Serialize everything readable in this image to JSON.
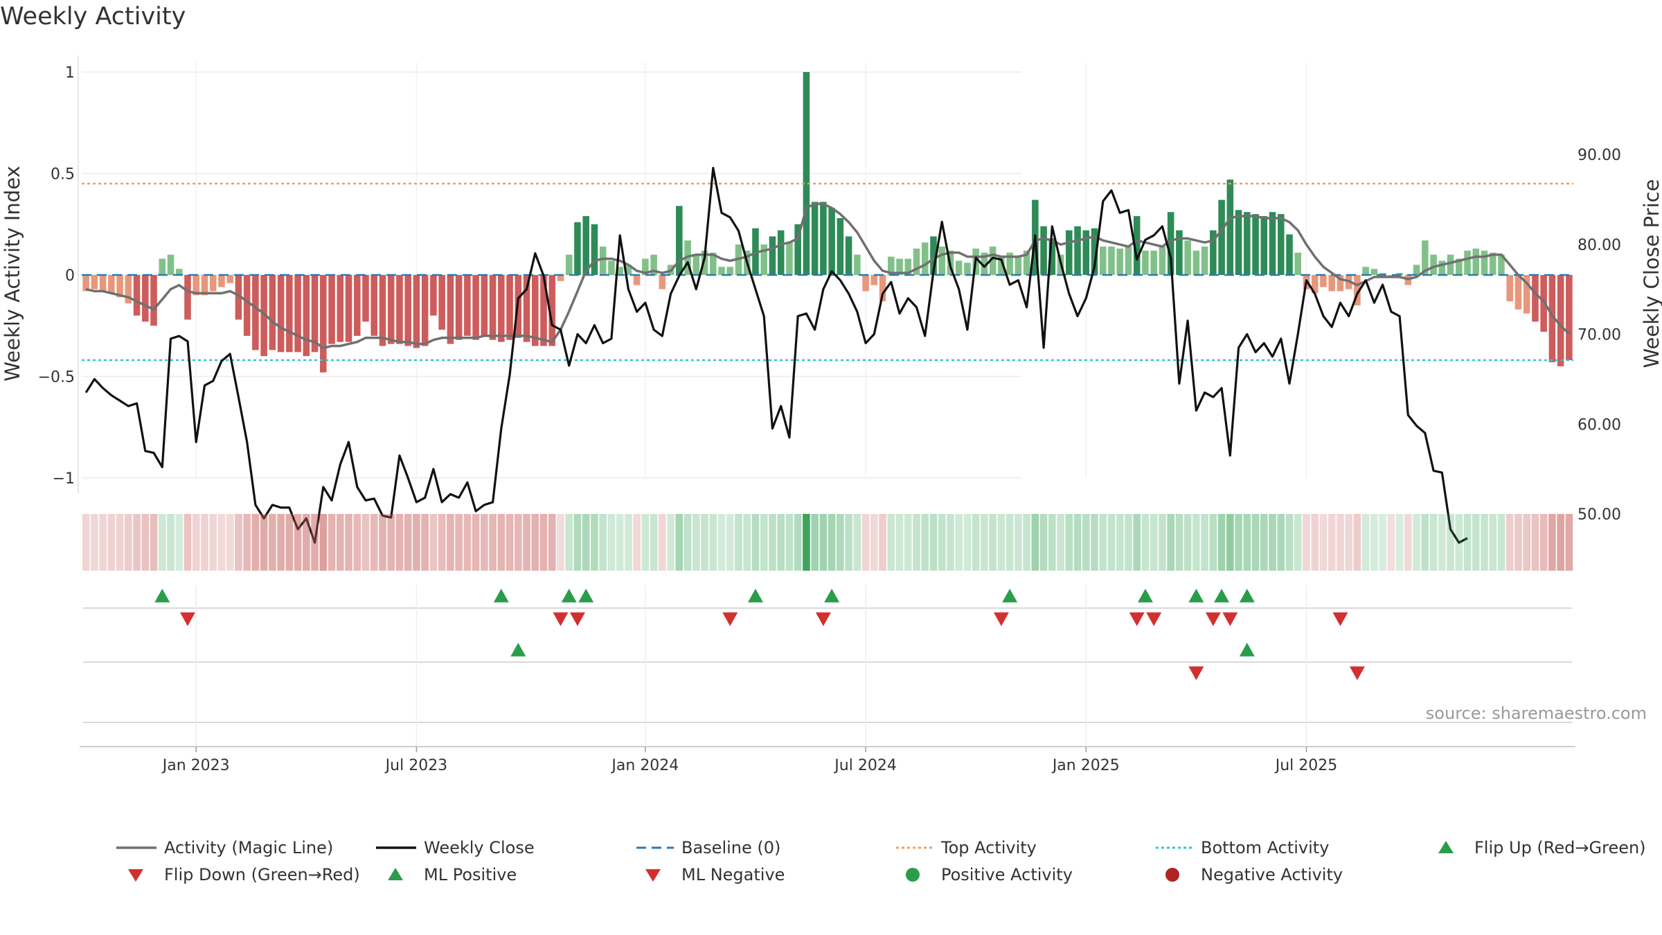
{
  "chart_data": {
    "type": "bar",
    "title": "Weekly Activity",
    "ylabel_left": "Weekly Activity Index",
    "ylabel_right": "Weekly Close Price",
    "source": "source: sharemaestro.com",
    "x_tick_labels": [
      "Jan 2023",
      "Jul 2023",
      "Jan 2024",
      "Jul 2024",
      "Jan 2025",
      "Jul 2025"
    ],
    "x_tick_weeks": [
      13,
      39,
      66,
      92,
      118,
      144
    ],
    "left_axis": {
      "range": [
        -1.1,
        1.04
      ],
      "ticks": [
        1,
        0.5,
        0,
        -0.5,
        -1
      ],
      "tick_labels": [
        "1",
        "0.5",
        "0",
        "−0.5",
        "−1"
      ]
    },
    "right_axis": {
      "range": [
        45.1,
        92.4
      ],
      "ticks": [
        90,
        80,
        70,
        60,
        50
      ],
      "tick_labels": [
        "90.00",
        "80.00",
        "70.00",
        "60.00",
        "50.00"
      ]
    },
    "top_activity": 0.45,
    "bottom_activity": -0.42,
    "activity": [
      -0.08,
      -0.07,
      -0.08,
      -0.09,
      -0.11,
      -0.14,
      -0.2,
      -0.23,
      -0.25,
      0.08,
      0.1,
      0.03,
      -0.22,
      -0.1,
      -0.1,
      -0.08,
      -0.06,
      -0.04,
      -0.22,
      -0.3,
      -0.37,
      -0.4,
      -0.37,
      -0.38,
      -0.38,
      -0.38,
      -0.4,
      -0.38,
      -0.48,
      -0.34,
      -0.33,
      -0.33,
      -0.3,
      -0.23,
      -0.3,
      -0.35,
      -0.34,
      -0.34,
      -0.35,
      -0.36,
      -0.35,
      -0.2,
      -0.27,
      -0.34,
      -0.32,
      -0.3,
      -0.32,
      -0.3,
      -0.32,
      -0.33,
      -0.32,
      -0.31,
      -0.33,
      -0.35,
      -0.35,
      -0.35,
      -0.03,
      0.1,
      0.26,
      0.29,
      0.25,
      0.14,
      0.07,
      0.04,
      0.05,
      -0.05,
      0.08,
      0.1,
      -0.07,
      0.05,
      0.34,
      0.17,
      0.1,
      0.12,
      0.11,
      0.04,
      0.04,
      0.15,
      0.12,
      0.23,
      0.15,
      0.19,
      0.22,
      0.16,
      0.25,
      1.0,
      0.36,
      0.36,
      0.33,
      0.28,
      0.19,
      0.1,
      -0.08,
      -0.05,
      -0.13,
      0.09,
      0.08,
      0.08,
      0.13,
      0.16,
      0.19,
      0.14,
      0.12,
      0.07,
      0.06,
      0.13,
      0.11,
      0.14,
      0.09,
      0.11,
      0.09,
      0.12,
      0.37,
      0.24,
      0.18,
      0.1,
      0.22,
      0.24,
      0.22,
      0.23,
      0.14,
      0.14,
      0.13,
      0.14,
      0.29,
      0.12,
      0.12,
      0.14,
      0.31,
      0.22,
      0.17,
      0.12,
      0.14,
      0.22,
      0.37,
      0.47,
      0.32,
      0.31,
      0.3,
      0.29,
      0.31,
      0.3,
      0.2,
      0.11,
      -0.07,
      -0.09,
      -0.06,
      -0.08,
      -0.08,
      -0.07,
      -0.15,
      0.04,
      0.03,
      0.01,
      -0.01,
      0.01,
      -0.05,
      0.05,
      0.17,
      0.1,
      0.07,
      0.1,
      0.08,
      0.12,
      0.13,
      0.12,
      0.11,
      0.1,
      -0.13,
      -0.17,
      -0.19,
      -0.23,
      -0.28,
      -0.43,
      -0.45,
      -0.42
    ],
    "magic_line": [
      -0.07,
      -0.08,
      -0.08,
      -0.09,
      -0.1,
      -0.11,
      -0.13,
      -0.15,
      -0.17,
      -0.12,
      -0.07,
      -0.05,
      -0.08,
      -0.09,
      -0.09,
      -0.09,
      -0.09,
      -0.08,
      -0.1,
      -0.13,
      -0.16,
      -0.19,
      -0.23,
      -0.26,
      -0.28,
      -0.3,
      -0.32,
      -0.33,
      -0.36,
      -0.35,
      -0.35,
      -0.34,
      -0.33,
      -0.31,
      -0.31,
      -0.31,
      -0.32,
      -0.33,
      -0.33,
      -0.34,
      -0.34,
      -0.32,
      -0.31,
      -0.31,
      -0.31,
      -0.31,
      -0.31,
      -0.3,
      -0.3,
      -0.3,
      -0.3,
      -0.3,
      -0.3,
      -0.31,
      -0.32,
      -0.33,
      -0.27,
      -0.18,
      -0.08,
      0.02,
      0.07,
      0.08,
      0.08,
      0.07,
      0.05,
      0.02,
      0.01,
      0.02,
      0.01,
      0.02,
      0.07,
      0.09,
      0.1,
      0.1,
      0.1,
      0.08,
      0.07,
      0.08,
      0.09,
      0.11,
      0.12,
      0.13,
      0.15,
      0.16,
      0.18,
      0.33,
      0.35,
      0.35,
      0.33,
      0.3,
      0.26,
      0.21,
      0.14,
      0.07,
      0.02,
      0.01,
      0.01,
      0.01,
      0.03,
      0.05,
      0.08,
      0.1,
      0.11,
      0.11,
      0.09,
      0.09,
      0.09,
      0.1,
      0.09,
      0.09,
      0.09,
      0.1,
      0.17,
      0.18,
      0.17,
      0.15,
      0.16,
      0.17,
      0.18,
      0.19,
      0.17,
      0.16,
      0.15,
      0.14,
      0.17,
      0.16,
      0.15,
      0.14,
      0.17,
      0.18,
      0.18,
      0.17,
      0.16,
      0.17,
      0.22,
      0.28,
      0.29,
      0.29,
      0.29,
      0.28,
      0.28,
      0.28,
      0.26,
      0.22,
      0.15,
      0.09,
      0.04,
      0.01,
      -0.02,
      -0.03,
      -0.05,
      -0.03,
      -0.01,
      -0.01,
      -0.01,
      -0.01,
      -0.02,
      -0.01,
      0.02,
      0.04,
      0.05,
      0.06,
      0.07,
      0.08,
      0.09,
      0.09,
      0.1,
      0.1,
      0.05,
      0.0,
      -0.04,
      -0.09,
      -0.13,
      -0.2,
      -0.25,
      -0.29
    ],
    "weekly_close": [
      63.5,
      65.0,
      64.0,
      63.2,
      62.6,
      62.0,
      62.3,
      57.0,
      56.8,
      55.2,
      69.5,
      69.8,
      69.2,
      58.0,
      64.3,
      64.8,
      67.0,
      67.8,
      63.0,
      58.0,
      51.0,
      49.5,
      51.0,
      50.7,
      50.7,
      48.3,
      49.5,
      46.8,
      53.0,
      51.5,
      55.5,
      58.0,
      53.0,
      51.5,
      51.7,
      49.8,
      49.6,
      56.5,
      54.0,
      51.3,
      51.8,
      55.0,
      51.3,
      52.2,
      51.8,
      53.5,
      50.3,
      51.0,
      51.3,
      59.5,
      65.5,
      74.0,
      75.0,
      79.0,
      76.5,
      71.0,
      70.5,
      66.5,
      70.0,
      69.0,
      71.0,
      69.0,
      69.5,
      81.0,
      75.0,
      72.5,
      73.5,
      70.5,
      69.8,
      74.5,
      76.5,
      78.0,
      75.0,
      78.5,
      88.5,
      83.5,
      83.0,
      81.5,
      78.0,
      75.0,
      72.0,
      59.5,
      62.0,
      58.5,
      72.0,
      72.3,
      70.5,
      75.0,
      77.0,
      76.0,
      74.5,
      72.5,
      69.0,
      70.0,
      74.5,
      75.8,
      72.3,
      74.0,
      73.0,
      69.8,
      77.0,
      82.5,
      77.5,
      75.0,
      70.5,
      78.5,
      77.5,
      78.5,
      78.3,
      75.5,
      76.0,
      73.0,
      81.0,
      68.5,
      82.0,
      78.0,
      74.5,
      72.0,
      74.0,
      77.5,
      84.8,
      86.0,
      83.5,
      83.8,
      78.3,
      80.5,
      81.0,
      82.0,
      78.5,
      64.5,
      71.5,
      61.5,
      63.5,
      63.0,
      64.0,
      56.5,
      68.5,
      70.0,
      68.0,
      69.0,
      67.5,
      69.5,
      64.5,
      70.0,
      76.0,
      74.5,
      72.0,
      70.8,
      73.5,
      72.0,
      74.5,
      76.0,
      73.5,
      75.5,
      72.5,
      72.0,
      61.0,
      59.8,
      59.0,
      54.8,
      54.6,
      48.3,
      46.8,
      47.3
    ],
    "flip_up": [
      9,
      49,
      57,
      59,
      79,
      88,
      109,
      125,
      131,
      134,
      137
    ],
    "flip_down": [
      12,
      56,
      58,
      76,
      87,
      108,
      124,
      126,
      133,
      135,
      148
    ],
    "ml_positive": [
      51,
      137
    ],
    "ml_negative": [
      131,
      150
    ],
    "positive_activity": [],
    "negative_activity": [],
    "legend": [
      {
        "label": "Activity (Magic Line)",
        "kind": "line",
        "color": "#707070"
      },
      {
        "label": "Weekly Close",
        "kind": "line",
        "color": "#111111"
      },
      {
        "label": "Baseline (0)",
        "kind": "dash",
        "color": "#2a7ab5"
      },
      {
        "label": "Top Activity",
        "kind": "dot",
        "color": "#e8a06a"
      },
      {
        "label": "Bottom Activity",
        "kind": "dot",
        "color": "#2ec4d8"
      },
      {
        "label": "Flip Up (Red→Green)",
        "kind": "tri-up",
        "color": "#2a9d4a"
      },
      {
        "label": "Flip Down (Green→Red)",
        "kind": "tri-down",
        "color": "#d32f2f"
      },
      {
        "label": "ML Positive",
        "kind": "tri-up",
        "color": "#2a9d4a"
      },
      {
        "label": "ML Negative",
        "kind": "tri-down",
        "color": "#d32f2f"
      },
      {
        "label": "Positive Activity",
        "kind": "circle",
        "color": "#2a9d4a"
      },
      {
        "label": "Negative Activity",
        "kind": "circle",
        "color": "#b22222"
      }
    ],
    "colors": {
      "pos_strong": "#2e8b57",
      "pos_light": "#82c08a",
      "neg_strong": "#cd5c5c",
      "neg_light": "#e8977c",
      "magic_line": "#707070",
      "close": "#111111",
      "baseline": "#2a7ab5",
      "top": "#e8a06a",
      "bottom": "#2ec4d8",
      "up": "#2a9d4a",
      "down": "#d32f2f",
      "heat_pos": "#2e9e4f",
      "heat_neg": "#c0504d"
    }
  }
}
